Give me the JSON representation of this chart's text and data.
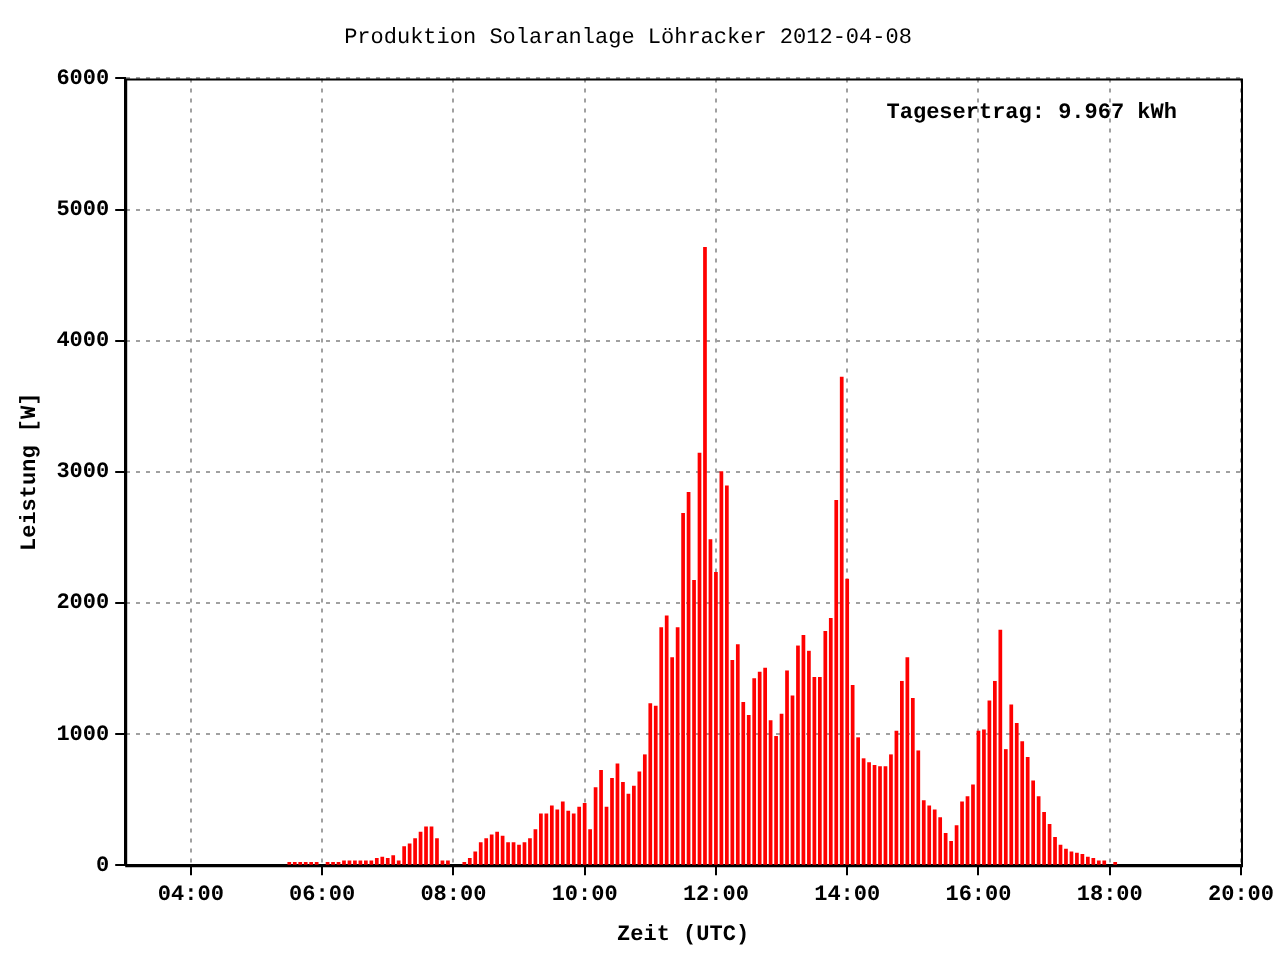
{
  "chart_data": {
    "type": "bar",
    "title": "Produktion Solaranlage Löhracker 2012-04-08",
    "xlabel": "Zeit (UTC)",
    "ylabel": "Leistung [W]",
    "annotations": [
      "Tagesertrag: 9.967 kWh"
    ],
    "x": [
      5.5,
      5.5833,
      5.6667,
      5.75,
      5.8333,
      5.9167,
      6.0833,
      6.1667,
      6.25,
      6.3333,
      6.4167,
      6.5,
      6.5833,
      6.6667,
      6.75,
      6.8333,
      6.9167,
      7.0,
      7.0833,
      7.1667,
      7.25,
      7.3333,
      7.4167,
      7.5,
      7.5833,
      7.6667,
      7.75,
      7.8333,
      7.9167,
      8.1667,
      8.25,
      8.3333,
      8.4167,
      8.5,
      8.5833,
      8.6667,
      8.75,
      8.8333,
      8.9167,
      9.0,
      9.0833,
      9.1667,
      9.25,
      9.3333,
      9.4167,
      9.5,
      9.5833,
      9.6667,
      9.75,
      9.8333,
      9.9167,
      10.0,
      10.0833,
      10.1667,
      10.25,
      10.3333,
      10.4167,
      10.5,
      10.5833,
      10.6667,
      10.75,
      10.8333,
      10.9167,
      11.0,
      11.0833,
      11.1667,
      11.25,
      11.3333,
      11.4167,
      11.5,
      11.5833,
      11.6667,
      11.75,
      11.8333,
      11.9167,
      12.0,
      12.0833,
      12.1667,
      12.25,
      12.3333,
      12.4167,
      12.5,
      12.5833,
      12.6667,
      12.75,
      12.8333,
      12.9167,
      13.0,
      13.0833,
      13.1667,
      13.25,
      13.3333,
      13.4167,
      13.5,
      13.5833,
      13.6667,
      13.75,
      13.8333,
      13.9167,
      14.0,
      14.0833,
      14.1667,
      14.25,
      14.3333,
      14.4167,
      14.5,
      14.5833,
      14.6667,
      14.75,
      14.8333,
      14.9167,
      15.0,
      15.0833,
      15.1667,
      15.25,
      15.3333,
      15.4167,
      15.5,
      15.5833,
      15.6667,
      15.75,
      15.8333,
      15.9167,
      16.0,
      16.0833,
      16.1667,
      16.25,
      16.3333,
      16.4167,
      16.5,
      16.5833,
      16.6667,
      16.75,
      16.8333,
      16.9167,
      17.0,
      17.0833,
      17.1667,
      17.25,
      17.3333,
      17.4167,
      17.5,
      17.5833,
      17.6667,
      17.75,
      17.8333,
      17.9167,
      18.0833
    ],
    "values": [
      20,
      20,
      20,
      20,
      20,
      20,
      20,
      20,
      20,
      30,
      30,
      30,
      30,
      30,
      30,
      50,
      60,
      50,
      70,
      30,
      140,
      160,
      200,
      250,
      290,
      290,
      200,
      30,
      30,
      20,
      50,
      100,
      170,
      200,
      230,
      250,
      220,
      170,
      170,
      150,
      170,
      200,
      270,
      390,
      390,
      450,
      420,
      480,
      410,
      390,
      440,
      470,
      270,
      590,
      720,
      440,
      660,
      770,
      630,
      540,
      600,
      710,
      840,
      1230,
      1210,
      1810,
      1900,
      1580,
      1810,
      2680,
      2840,
      2170,
      3140,
      4710,
      2480,
      2230,
      3000,
      2890,
      1560,
      1680,
      1240,
      1140,
      1420,
      1470,
      1500,
      1100,
      980,
      1150,
      1480,
      1290,
      1670,
      1750,
      1630,
      1430,
      1430,
      1780,
      1880,
      2780,
      3720,
      2180,
      1370,
      970,
      810,
      780,
      760,
      750,
      750,
      840,
      1020,
      1400,
      1580,
      1270,
      870,
      490,
      450,
      420,
      360,
      240,
      180,
      300,
      480,
      520,
      610,
      1020,
      1030,
      1250,
      1400,
      1790,
      880,
      1220,
      1080,
      940,
      820,
      640,
      520,
      400,
      310,
      210,
      150,
      120,
      100,
      90,
      80,
      60,
      50,
      30,
      30,
      20
    ],
    "color": "#ff0000",
    "xlim": [
      3,
      20
    ],
    "xticks": [
      {
        "value": 4,
        "label": "04:00"
      },
      {
        "value": 6,
        "label": "06:00"
      },
      {
        "value": 8,
        "label": "08:00"
      },
      {
        "value": 10,
        "label": "10:00"
      },
      {
        "value": 12,
        "label": "12:00"
      },
      {
        "value": 14,
        "label": "14:00"
      },
      {
        "value": 16,
        "label": "16:00"
      },
      {
        "value": 18,
        "label": "18:00"
      },
      {
        "value": 20,
        "label": "20:00"
      }
    ],
    "ylim": [
      0,
      6000
    ],
    "yticks": [
      0,
      1000,
      2000,
      3000,
      4000,
      5000,
      6000
    ],
    "grid": true
  }
}
